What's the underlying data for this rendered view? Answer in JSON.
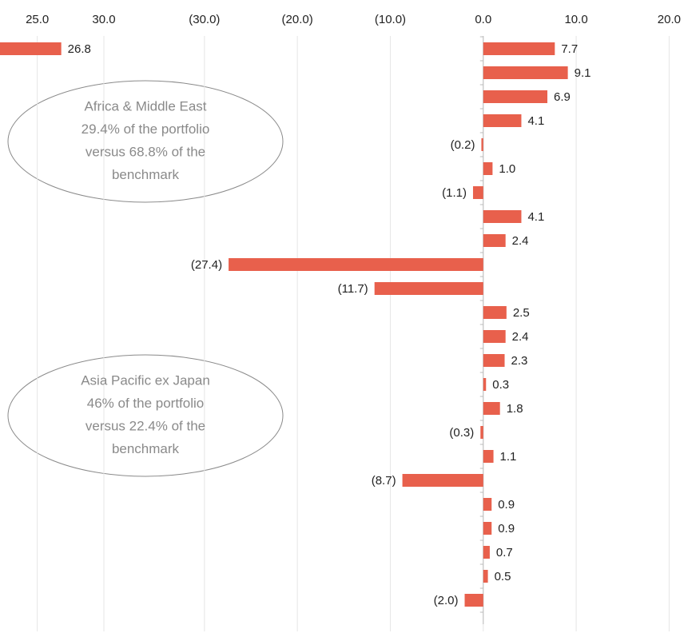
{
  "chart_data": [
    {
      "type": "barh",
      "values": [
        26.8
      ],
      "color": "#e8604c",
      "xlim": [
        22.2,
        34.2
      ],
      "xticks": [
        {
          "value": 25,
          "label": "25.0"
        },
        {
          "value": 30,
          "label": "30.0"
        }
      ],
      "grid": true
    },
    {
      "type": "barh",
      "values": [
        7.7,
        9.1,
        6.9,
        4.1,
        -0.2,
        1.0,
        -1.1,
        4.1,
        2.4,
        -27.4,
        -11.7,
        2.5,
        2.4,
        2.3,
        0.3,
        1.8,
        -0.3,
        1.1,
        -8.7,
        0.9,
        0.9,
        0.7,
        0.5,
        -2.0
      ],
      "value_labels": [
        "7.7",
        "9.1",
        "6.9",
        "4.1",
        "(0.2)",
        "1.0",
        "(1.1)",
        "4.1",
        "2.4",
        "(27.4)",
        "(11.7)",
        "2.5",
        "2.4",
        "2.3",
        "0.3",
        "1.8",
        "(0.3)",
        "1.1",
        "(8.7)",
        "0.9",
        "0.9",
        "0.7",
        "0.5",
        "(2.0)"
      ],
      "color": "#e8604c",
      "xlim": [
        -34.8,
        21.6
      ],
      "xticks": [
        {
          "value": -30,
          "label": "(30.0)"
        },
        {
          "value": -20,
          "label": "(20.0)"
        },
        {
          "value": -10,
          "label": "(10.0)"
        },
        {
          "value": 0,
          "label": "0.0"
        },
        {
          "value": 10,
          "label": "10.0"
        },
        {
          "value": 20,
          "label": "20.0"
        }
      ],
      "grid": true,
      "annotations": [
        {
          "lines": [
            "Africa & Middle East",
            "29.4% of the portfolio",
            "versus 68.8% of the",
            "benchmark"
          ]
        },
        {
          "lines": [
            "Asia Pacific ex Japan",
            "46% of the portfolio",
            "versus 22.4% of the",
            "benchmark"
          ]
        }
      ]
    }
  ]
}
